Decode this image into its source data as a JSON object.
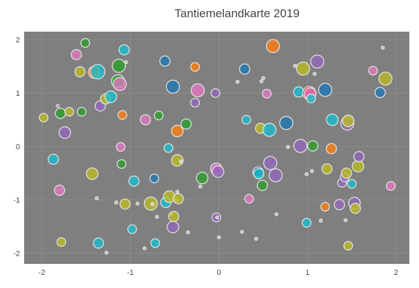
{
  "chart_data": {
    "type": "scatter",
    "title": "Tantiemelandkarte 2019",
    "xlabel": "",
    "ylabel": "",
    "xlim": [
      -2.2,
      2.15
    ],
    "ylim": [
      -2.2,
      2.15
    ],
    "x_ticks": [
      {
        "value": -2,
        "label": "-2"
      },
      {
        "value": -1,
        "label": "-1"
      },
      {
        "value": 0,
        "label": "0"
      },
      {
        "value": 1,
        "label": "1"
      },
      {
        "value": 2,
        "label": "2"
      }
    ],
    "y_ticks": [
      {
        "value": 2,
        "label": "2"
      },
      {
        "value": 1,
        "label": "1"
      },
      {
        "value": 0,
        "label": "0"
      },
      {
        "value": -1,
        "label": "-1"
      },
      {
        "value": -2,
        "label": "-2"
      }
    ],
    "grid": true,
    "legend": "none",
    "colors": {
      "plot_background": "#7f7f7f",
      "grid": "#8c8c8c",
      "marker_outline": "#e6e6e6",
      "palette": [
        "#1f77b4",
        "#ff7f0e",
        "#2ca02c",
        "#d62728",
        "#9467bd",
        "#8c564b",
        "#e377c2",
        "#7f7f7f",
        "#bcbd22",
        "#17becf"
      ]
    },
    "points": [
      {
        "x": -1.98,
        "y": 0.54,
        "size": 6,
        "color": "#bcbd22"
      },
      {
        "x": -1.87,
        "y": -0.24,
        "size": 7,
        "color": "#17becf"
      },
      {
        "x": -1.82,
        "y": 0.76,
        "size": 2,
        "color": "#e377c2"
      },
      {
        "x": -1.8,
        "y": -0.82,
        "size": 7,
        "color": "#e377c2"
      },
      {
        "x": -1.79,
        "y": 0.62,
        "size": 7,
        "color": "#2ca02c"
      },
      {
        "x": -1.78,
        "y": -1.79,
        "size": 6,
        "color": "#bcbd22"
      },
      {
        "x": -1.74,
        "y": 0.26,
        "size": 8,
        "color": "#9467bd"
      },
      {
        "x": -1.69,
        "y": 0.65,
        "size": 6,
        "color": "#bcbd22"
      },
      {
        "x": -1.61,
        "y": 1.72,
        "size": 7,
        "color": "#e377c2"
      },
      {
        "x": -1.57,
        "y": 1.4,
        "size": 7,
        "color": "#bcbd22"
      },
      {
        "x": -1.55,
        "y": 0.65,
        "size": 6,
        "color": "#2ca02c"
      },
      {
        "x": -1.51,
        "y": 1.94,
        "size": 6,
        "color": "#2ca02c"
      },
      {
        "x": -1.43,
        "y": -0.51,
        "size": 8,
        "color": "#bcbd22"
      },
      {
        "x": -1.41,
        "y": 1.39,
        "size": 8,
        "color": "#ff7f0e"
      },
      {
        "x": -1.38,
        "y": -0.97,
        "size": 1,
        "color": "#e6e6e6"
      },
      {
        "x": -1.37,
        "y": 1.4,
        "size": 10,
        "color": "#17becf"
      },
      {
        "x": -1.36,
        "y": -1.81,
        "size": 7,
        "color": "#17becf"
      },
      {
        "x": -1.34,
        "y": 0.76,
        "size": 7,
        "color": "#9467bd"
      },
      {
        "x": -1.28,
        "y": 0.89,
        "size": 7,
        "color": "#bcbd22"
      },
      {
        "x": -1.27,
        "y": -1.99,
        "size": 1,
        "color": "#e6e6e6"
      },
      {
        "x": -1.22,
        "y": 0.93,
        "size": 8,
        "color": "#17becf"
      },
      {
        "x": -1.16,
        "y": -1.05,
        "size": 1,
        "color": "#e6e6e6"
      },
      {
        "x": -1.14,
        "y": 1.22,
        "size": 9,
        "color": "#2ca02c"
      },
      {
        "x": -1.13,
        "y": 1.51,
        "size": 9,
        "color": "#2ca02c"
      },
      {
        "x": -1.12,
        "y": 1.17,
        "size": 9,
        "color": "#e377c2"
      },
      {
        "x": -1.11,
        "y": -0.01,
        "size": 6,
        "color": "#e377c2"
      },
      {
        "x": -1.1,
        "y": -0.33,
        "size": 6,
        "color": "#2ca02c"
      },
      {
        "x": -1.09,
        "y": 0.59,
        "size": 6,
        "color": "#ff7f0e"
      },
      {
        "x": -1.07,
        "y": 1.81,
        "size": 7,
        "color": "#17becf"
      },
      {
        "x": -1.06,
        "y": -1.08,
        "size": 7,
        "color": "#bcbd22"
      },
      {
        "x": -1.05,
        "y": 1.58,
        "size": 1,
        "color": "#e6e6e6"
      },
      {
        "x": -0.98,
        "y": -1.55,
        "size": 6,
        "color": "#17becf"
      },
      {
        "x": -0.96,
        "y": -0.65,
        "size": 7,
        "color": "#17becf"
      },
      {
        "x": -0.92,
        "y": -1.07,
        "size": 1,
        "color": "#e6e6e6"
      },
      {
        "x": -0.84,
        "y": -1.91,
        "size": 1,
        "color": "#e6e6e6"
      },
      {
        "x": -0.83,
        "y": 0.5,
        "size": 7,
        "color": "#e377c2"
      },
      {
        "x": -0.77,
        "y": -1.07,
        "size": 9,
        "color": "#bcbd22"
      },
      {
        "x": -0.75,
        "y": -1.08,
        "size": 1,
        "color": "#e6e6e6"
      },
      {
        "x": -0.73,
        "y": -0.6,
        "size": 6,
        "color": "#1f77b4"
      },
      {
        "x": -0.72,
        "y": -1.81,
        "size": 6,
        "color": "#17becf"
      },
      {
        "x": -0.7,
        "y": -1.32,
        "size": 1,
        "color": "#e6e6e6"
      },
      {
        "x": -0.68,
        "y": 0.58,
        "size": 6,
        "color": "#2ca02c"
      },
      {
        "x": -0.61,
        "y": 1.6,
        "size": 7,
        "color": "#1f77b4"
      },
      {
        "x": -0.6,
        "y": -1.05,
        "size": 7,
        "color": "#17becf"
      },
      {
        "x": -0.57,
        "y": -0.03,
        "size": 6,
        "color": "#17becf"
      },
      {
        "x": -0.56,
        "y": -0.94,
        "size": 8,
        "color": "#bcbd22"
      },
      {
        "x": -0.54,
        "y": -1.27,
        "size": 1,
        "color": "#e6e6e6"
      },
      {
        "x": -0.52,
        "y": 1.12,
        "size": 9,
        "color": "#1f77b4"
      },
      {
        "x": -0.52,
        "y": -1.51,
        "size": 8,
        "color": "#9467bd"
      },
      {
        "x": -0.51,
        "y": -1.31,
        "size": 7,
        "color": "#bcbd22"
      },
      {
        "x": -0.48,
        "y": -1.01,
        "size": 1,
        "color": "#e6e6e6"
      },
      {
        "x": -0.47,
        "y": -0.26,
        "size": 8,
        "color": "#bcbd22"
      },
      {
        "x": -0.47,
        "y": -0.85,
        "size": 1,
        "color": "#e6e6e6"
      },
      {
        "x": -0.47,
        "y": 0.29,
        "size": 8,
        "color": "#ff7f0e"
      },
      {
        "x": -0.46,
        "y": -0.98,
        "size": 7,
        "color": "#bcbd22"
      },
      {
        "x": -0.43,
        "y": -0.28,
        "size": 1,
        "color": "#e6e6e6"
      },
      {
        "x": -0.37,
        "y": 0.42,
        "size": 7,
        "color": "#2ca02c"
      },
      {
        "x": -0.35,
        "y": -1.61,
        "size": 1,
        "color": "#e6e6e6"
      },
      {
        "x": -0.27,
        "y": 0.82,
        "size": 6,
        "color": "#9467bd"
      },
      {
        "x": -0.27,
        "y": 1.49,
        "size": 6,
        "color": "#ff7f0e"
      },
      {
        "x": -0.24,
        "y": 1.05,
        "size": 9,
        "color": "#e377c2"
      },
      {
        "x": -0.21,
        "y": -0.75,
        "size": 1,
        "color": "#e6e6e6"
      },
      {
        "x": -0.19,
        "y": -0.59,
        "size": 8,
        "color": "#2ca02c"
      },
      {
        "x": -0.04,
        "y": 1.0,
        "size": 6,
        "color": "#9467bd"
      },
      {
        "x": -0.03,
        "y": -0.42,
        "size": 8,
        "color": "#e377c2"
      },
      {
        "x": -0.03,
        "y": -1.33,
        "size": 6,
        "color": "#9467bd"
      },
      {
        "x": -0.01,
        "y": -0.47,
        "size": 8,
        "color": "#9467bd"
      },
      {
        "x": -0.02,
        "y": -1.33,
        "size": 1,
        "color": "#e6e6e6"
      },
      {
        "x": 0.0,
        "y": -1.7,
        "size": 1,
        "color": "#e6e6e6"
      },
      {
        "x": 0.21,
        "y": 1.21,
        "size": 1,
        "color": "#e6e6e6"
      },
      {
        "x": 0.26,
        "y": -1.6,
        "size": 1,
        "color": "#e6e6e6"
      },
      {
        "x": 0.29,
        "y": 1.45,
        "size": 7,
        "color": "#1f77b4"
      },
      {
        "x": 0.31,
        "y": 0.5,
        "size": 6,
        "color": "#17becf"
      },
      {
        "x": 0.34,
        "y": -0.98,
        "size": 6,
        "color": "#e377c2"
      },
      {
        "x": 0.42,
        "y": -1.73,
        "size": 1,
        "color": "#e6e6e6"
      },
      {
        "x": 0.44,
        "y": -0.48,
        "size": 7,
        "color": "#1f77b4"
      },
      {
        "x": 0.45,
        "y": -0.51,
        "size": 7,
        "color": "#17becf"
      },
      {
        "x": 0.47,
        "y": 0.34,
        "size": 7,
        "color": "#bcbd22"
      },
      {
        "x": 0.48,
        "y": 1.22,
        "size": 1,
        "color": "#e6e6e6"
      },
      {
        "x": 0.49,
        "y": -0.73,
        "size": 7,
        "color": "#2ca02c"
      },
      {
        "x": 0.5,
        "y": 1.28,
        "size": 1,
        "color": "#e6e6e6"
      },
      {
        "x": 0.54,
        "y": 0.99,
        "size": 6,
        "color": "#e377c2"
      },
      {
        "x": 0.57,
        "y": 0.31,
        "size": 9,
        "color": "#17becf"
      },
      {
        "x": 0.58,
        "y": -0.31,
        "size": 9,
        "color": "#9467bd"
      },
      {
        "x": 0.61,
        "y": 1.88,
        "size": 9,
        "color": "#ff7f0e"
      },
      {
        "x": 0.64,
        "y": -0.54,
        "size": 9,
        "color": "#9467bd"
      },
      {
        "x": 0.65,
        "y": -1.27,
        "size": 1,
        "color": "#e6e6e6"
      },
      {
        "x": 0.76,
        "y": 0.44,
        "size": 9,
        "color": "#1f77b4"
      },
      {
        "x": 0.78,
        "y": -0.01,
        "size": 1,
        "color": "#e6e6e6"
      },
      {
        "x": 0.86,
        "y": 1.51,
        "size": 1,
        "color": "#e6e6e6"
      },
      {
        "x": 0.9,
        "y": 1.02,
        "size": 7,
        "color": "#17becf"
      },
      {
        "x": 0.92,
        "y": 0.01,
        "size": 9,
        "color": "#9467bd"
      },
      {
        "x": 0.95,
        "y": 1.46,
        "size": 9,
        "color": "#bcbd22"
      },
      {
        "x": 0.99,
        "y": -0.52,
        "size": 1,
        "color": "#e6e6e6"
      },
      {
        "x": 0.99,
        "y": -1.43,
        "size": 6,
        "color": "#17becf"
      },
      {
        "x": 1.02,
        "y": 1.0,
        "size": 9,
        "color": "#d62728"
      },
      {
        "x": 1.03,
        "y": 0.99,
        "size": 8,
        "color": "#e377c2"
      },
      {
        "x": 1.04,
        "y": 0.9,
        "size": 6,
        "color": "#17becf"
      },
      {
        "x": 1.05,
        "y": -0.46,
        "size": 1,
        "color": "#e6e6e6"
      },
      {
        "x": 1.06,
        "y": 0.01,
        "size": 7,
        "color": "#2ca02c"
      },
      {
        "x": 1.08,
        "y": 1.36,
        "size": 1,
        "color": "#e6e6e6"
      },
      {
        "x": 1.11,
        "y": 1.59,
        "size": 9,
        "color": "#9467bd"
      },
      {
        "x": 1.15,
        "y": -1.39,
        "size": 1,
        "color": "#e6e6e6"
      },
      {
        "x": 1.2,
        "y": 1.06,
        "size": 9,
        "color": "#1f77b4"
      },
      {
        "x": 1.2,
        "y": -1.13,
        "size": 6,
        "color": "#ff7f0e"
      },
      {
        "x": 1.22,
        "y": -0.42,
        "size": 7,
        "color": "#bcbd22"
      },
      {
        "x": 1.27,
        "y": -0.04,
        "size": 7,
        "color": "#ff7f0e"
      },
      {
        "x": 1.28,
        "y": 0.5,
        "size": 8,
        "color": "#17becf"
      },
      {
        "x": 1.36,
        "y": -1.09,
        "size": 7,
        "color": "#9467bd"
      },
      {
        "x": 1.39,
        "y": -0.68,
        "size": 6,
        "color": "#9467bd"
      },
      {
        "x": 1.42,
        "y": -0.58,
        "size": 6,
        "color": "#9467bd"
      },
      {
        "x": 1.43,
        "y": -1.38,
        "size": 1,
        "color": "#e6e6e6"
      },
      {
        "x": 1.44,
        "y": -0.5,
        "size": 7,
        "color": "#bcbd22"
      },
      {
        "x": 1.45,
        "y": 0.43,
        "size": 9,
        "color": "#9467bd"
      },
      {
        "x": 1.46,
        "y": 0.48,
        "size": 8,
        "color": "#bcbd22"
      },
      {
        "x": 1.46,
        "y": -1.86,
        "size": 6,
        "color": "#bcbd22"
      },
      {
        "x": 1.5,
        "y": -0.7,
        "size": 6,
        "color": "#17becf"
      },
      {
        "x": 1.53,
        "y": -1.06,
        "size": 8,
        "color": "#9467bd"
      },
      {
        "x": 1.54,
        "y": -1.16,
        "size": 7,
        "color": "#bcbd22"
      },
      {
        "x": 1.57,
        "y": -0.37,
        "size": 8,
        "color": "#bcbd22"
      },
      {
        "x": 1.58,
        "y": -0.19,
        "size": 7,
        "color": "#9467bd"
      },
      {
        "x": 1.74,
        "y": 1.42,
        "size": 6,
        "color": "#e377c2"
      },
      {
        "x": 1.82,
        "y": 1.01,
        "size": 7,
        "color": "#1f77b4"
      },
      {
        "x": 1.85,
        "y": 1.85,
        "size": 1,
        "color": "#e6e6e6"
      },
      {
        "x": 1.88,
        "y": 1.27,
        "size": 9,
        "color": "#bcbd22"
      },
      {
        "x": 1.94,
        "y": -0.74,
        "size": 6,
        "color": "#e377c2"
      }
    ]
  }
}
